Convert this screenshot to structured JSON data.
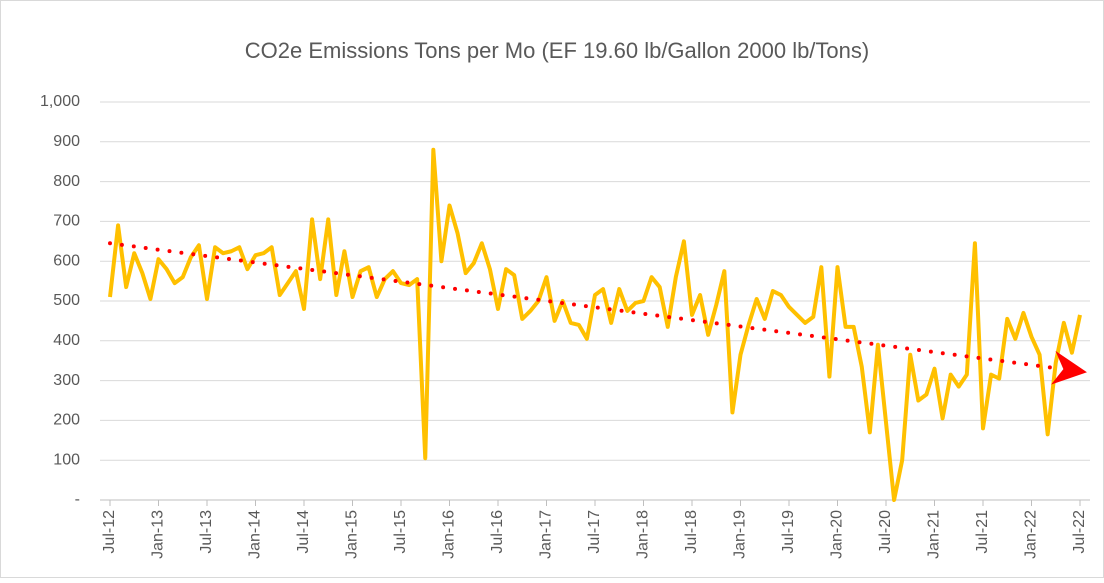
{
  "chart_data": {
    "type": "line",
    "title": "CO2e Emissions Tons per Mo (EF 19.60 lb/Gallon 2000 lb/Tons)",
    "categories": [
      "Jul-12",
      null,
      null,
      null,
      null,
      null,
      "Jan-13",
      null,
      null,
      null,
      null,
      null,
      "Jul-13",
      null,
      null,
      null,
      null,
      null,
      "Jan-14",
      null,
      null,
      null,
      null,
      null,
      "Jul-14",
      null,
      null,
      null,
      null,
      null,
      "Jan-15",
      null,
      null,
      null,
      null,
      null,
      "Jul-15",
      null,
      null,
      null,
      null,
      null,
      "Jan-16",
      null,
      null,
      null,
      null,
      null,
      "Jul-16",
      null,
      null,
      null,
      null,
      null,
      "Jan-17",
      null,
      null,
      null,
      null,
      null,
      "Jul-17",
      null,
      null,
      null,
      null,
      null,
      "Jan-18",
      null,
      null,
      null,
      null,
      null,
      "Jul-18",
      null,
      null,
      null,
      null,
      null,
      "Jan-19",
      null,
      null,
      null,
      null,
      null,
      "Jul-19",
      null,
      null,
      null,
      null,
      null,
      "Jan-20",
      null,
      null,
      null,
      null,
      null,
      "Jul-20",
      null,
      null,
      null,
      null,
      null,
      "Jan-21",
      null,
      null,
      null,
      null,
      null,
      "Jul-21",
      null,
      null,
      null,
      null,
      null,
      "Jan-22",
      null,
      null,
      null,
      null,
      null,
      "Jul-22"
    ],
    "series": [
      {
        "color": "#ffc000",
        "values": [
          510,
          690,
          535,
          620,
          570,
          505,
          605,
          580,
          545,
          560,
          610,
          640,
          505,
          635,
          620,
          625,
          635,
          580,
          615,
          620,
          635,
          515,
          545,
          575,
          480,
          705,
          555,
          705,
          515,
          625,
          510,
          575,
          585,
          510,
          555,
          575,
          545,
          540,
          555,
          105,
          880,
          600,
          740,
          670,
          570,
          595,
          645,
          580,
          480,
          580,
          565,
          455,
          475,
          500,
          560,
          450,
          500,
          445,
          440,
          405,
          515,
          530,
          445,
          530,
          475,
          495,
          500,
          560,
          535,
          435,
          560,
          650,
          465,
          515,
          415,
          490,
          575,
          220,
          365,
          440,
          505,
          455,
          525,
          515,
          485,
          465,
          445,
          460,
          585,
          310,
          585,
          435,
          435,
          335,
          170,
          390,
          195,
          0,
          100,
          365,
          250,
          265,
          330,
          205,
          315,
          285,
          315,
          645,
          180,
          315,
          305,
          455,
          405,
          470,
          410,
          365,
          165,
          345,
          445,
          370,
          465
        ]
      }
    ],
    "trend": {
      "color": "#ff0000",
      "start": 645,
      "end": 330
    },
    "ylim": [
      0,
      1000
    ],
    "yticks": [
      {
        "value": 0,
        "label": "-"
      },
      100,
      200,
      300,
      400,
      500,
      600,
      700,
      800,
      900,
      {
        "value": 1000,
        "label": "1,000"
      }
    ],
    "grid": true
  }
}
